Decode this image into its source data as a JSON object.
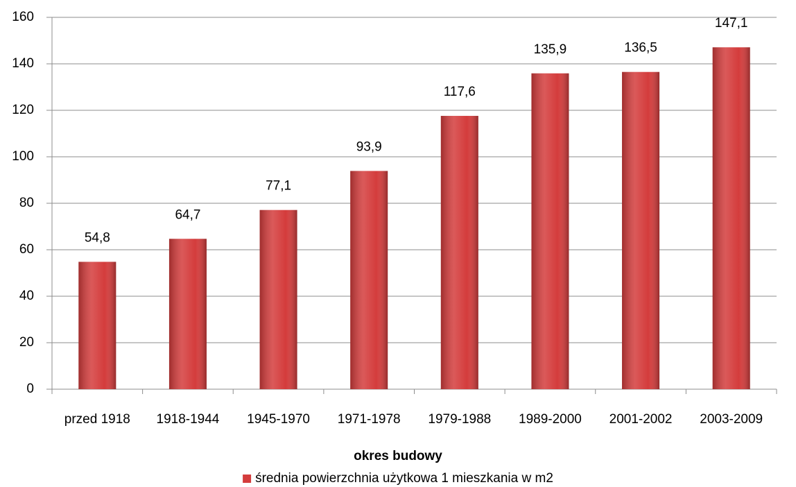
{
  "chart_data": {
    "type": "bar",
    "x_label": "okres budowy",
    "categories": [
      "przed 1918",
      "1918-1944",
      "1945-1970",
      "1971-1978",
      "1979-1988",
      "1989-2000",
      "2001-2002",
      "2003-2009"
    ],
    "series": [
      {
        "name": "średnia powierzchnia użytkowa 1 mieszkania w m2",
        "color": "#d43c3c",
        "values": [
          54.8,
          64.7,
          77.1,
          93.9,
          117.6,
          135.9,
          136.5,
          147.1
        ],
        "value_labels": [
          "54,8",
          "64,7",
          "77,1",
          "93,9",
          "117,6",
          "135,9",
          "136,5",
          "147,1"
        ]
      }
    ],
    "ylim": [
      0,
      160
    ],
    "yticks": [
      0,
      20,
      40,
      60,
      80,
      100,
      120,
      140,
      160
    ],
    "grid": true,
    "legend": "bottom"
  }
}
